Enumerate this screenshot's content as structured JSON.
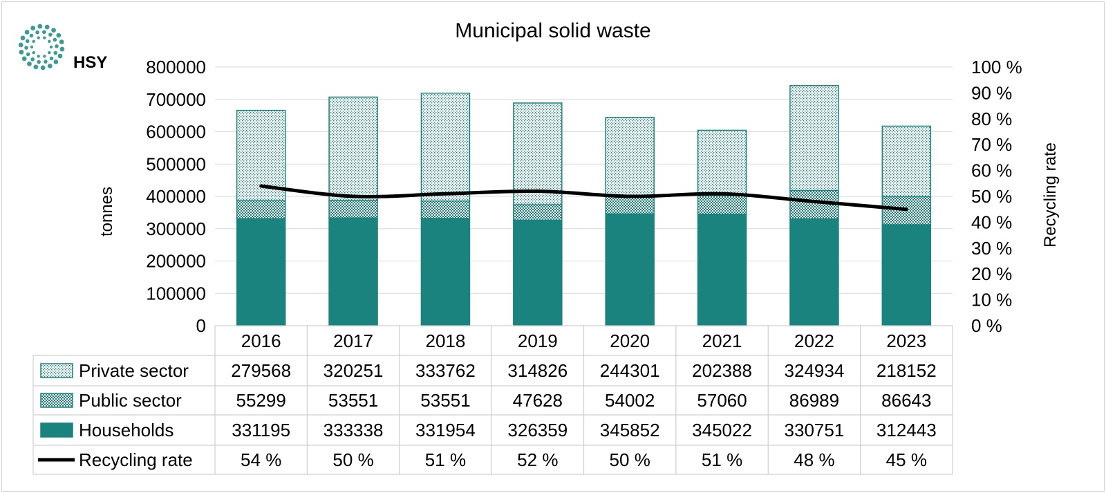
{
  "logo": {
    "text": "HSY",
    "color": "#1a8a84"
  },
  "chart_data": {
    "type": "bar",
    "stacked": true,
    "title": "Municipal solid waste",
    "ylabel": "tonnes",
    "y2label": "Recycling rate",
    "ylim": [
      0,
      800000
    ],
    "y2lim": [
      0,
      100
    ],
    "yticks": [
      "0",
      "100000",
      "200000",
      "300000",
      "400000",
      "500000",
      "600000",
      "700000",
      "800000"
    ],
    "y2ticks": [
      "0 %",
      "10 %",
      "20 %",
      "30 %",
      "40 %",
      "50 %",
      "60 %",
      "70 %",
      "80 %",
      "90 %",
      "100 %"
    ],
    "grid": true,
    "categories": [
      "2016",
      "2017",
      "2018",
      "2019",
      "2020",
      "2021",
      "2022",
      "2023"
    ],
    "series": [
      {
        "name": "Households",
        "values": [
          331195,
          333338,
          331954,
          326359,
          345852,
          345022,
          330751,
          312443
        ],
        "color": "#1a837d",
        "pattern": "solid"
      },
      {
        "name": "Public sector",
        "values": [
          55299,
          53551,
          53551,
          47628,
          54002,
          57060,
          86989,
          86643
        ],
        "color": "#1a837d",
        "pattern": "checker"
      },
      {
        "name": "Private sector",
        "values": [
          279568,
          320251,
          333762,
          314826,
          244301,
          202388,
          324934,
          218152
        ],
        "color": "#1a837d",
        "pattern": "dots"
      }
    ],
    "line_series": {
      "name": "Recycling rate",
      "axis": "secondary",
      "values": [
        54,
        50,
        51,
        52,
        50,
        51,
        48,
        45
      ],
      "labels": [
        "54 %",
        "50 %",
        "51 %",
        "52 %",
        "50 %",
        "51 %",
        "48 %",
        "45 %"
      ],
      "color": "#000000"
    },
    "data_table_row_order": [
      "Private sector",
      "Public sector",
      "Households",
      "Recycling rate"
    ]
  }
}
